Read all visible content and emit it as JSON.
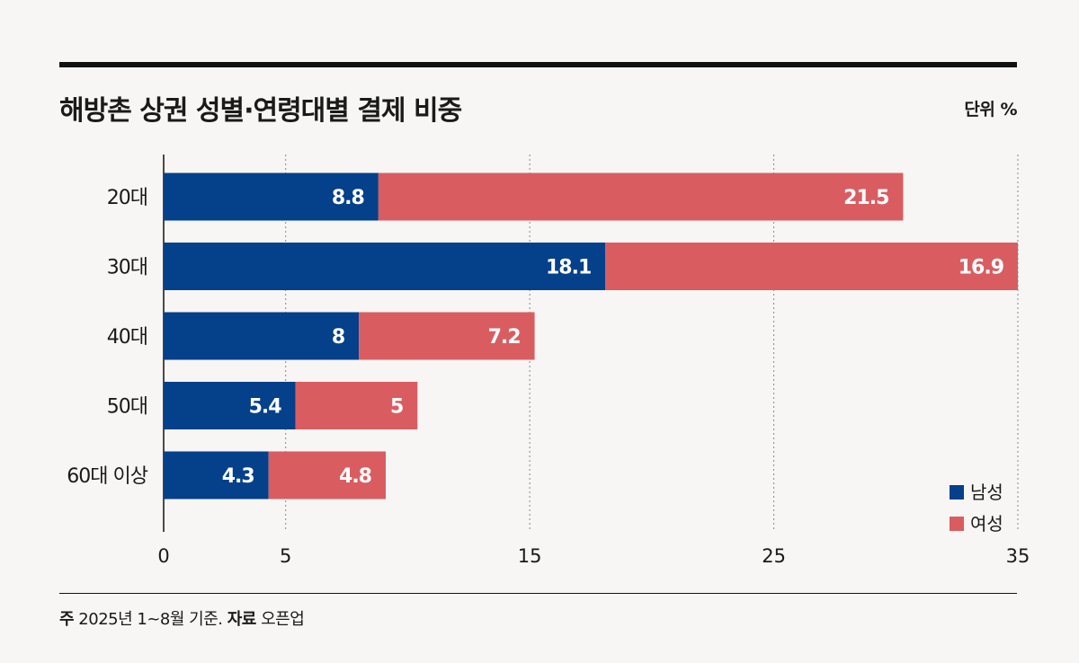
{
  "header": {
    "title": "해방촌 상권 성별·연령대별 결제 비중",
    "unit": "단위 %"
  },
  "footer": {
    "note_label": "주",
    "note_text": "2025년 1~8월 기준.",
    "source_label": "자료",
    "source_text": "오픈업"
  },
  "colors": {
    "male": "#05408a",
    "female": "#d95d60",
    "grid": "#888888",
    "axis": "#111111"
  },
  "chart_data": {
    "type": "bar",
    "orientation": "horizontal",
    "stacked": true,
    "title": "해방촌 상권 성별·연령대별 결제 비중",
    "xlabel": "",
    "ylabel": "",
    "categories": [
      "20대",
      "30대",
      "40대",
      "50대",
      "60대 이상"
    ],
    "series": [
      {
        "name": "남성",
        "values": [
          8.8,
          18.1,
          8,
          5.4,
          4.3
        ]
      },
      {
        "name": "여성",
        "values": [
          21.5,
          16.9,
          7.2,
          5,
          4.8
        ]
      }
    ],
    "xlim": [
      0,
      35
    ],
    "xticks": [
      "0",
      "5",
      "15",
      "25",
      "35"
    ],
    "grid": true,
    "legend_position": "bottom-right"
  }
}
